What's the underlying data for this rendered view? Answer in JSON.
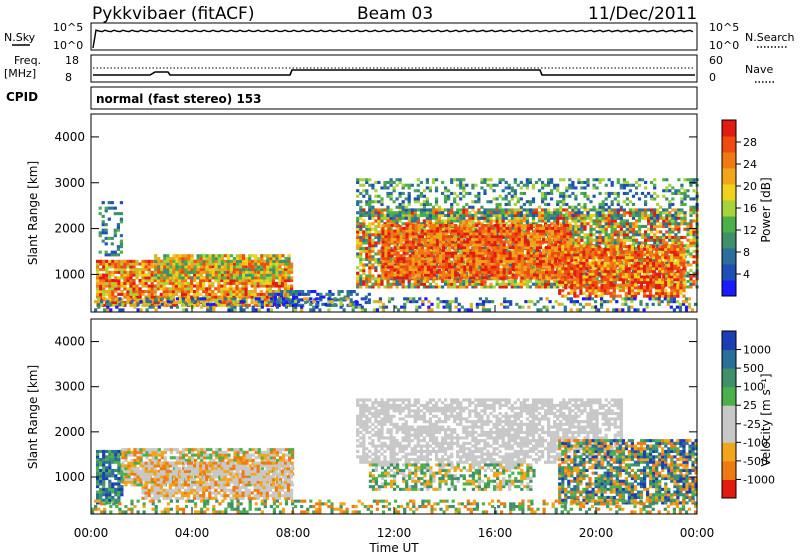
{
  "header": {
    "station": "Pykkvibaer (fitACF)",
    "beam": "Beam 03",
    "date": "11/Dec/2011"
  },
  "panels": {
    "nsky": {
      "label": "N.Sky",
      "ticks": [
        "10^5",
        "10^0"
      ],
      "right_label": "N.Search",
      "right_ticks": [
        "10^5",
        "10^0"
      ]
    },
    "freq": {
      "label_line1": "Freq.",
      "label_line2": "[MHz]",
      "ticks": [
        "18",
        "8"
      ],
      "right_label": "Nave",
      "right_ticks": [
        "60",
        "0"
      ]
    },
    "cpid": {
      "label": "CPID",
      "value": "normal (fast stereo) 153"
    }
  },
  "colors": {
    "power_scale": [
      "#1a1aff",
      "#1f4fb4",
      "#2a6e9b",
      "#3f8f6b",
      "#4cb04a",
      "#a6d33a",
      "#f0d21c",
      "#f0a51a",
      "#f07a12",
      "#ee4a12",
      "#e21a10"
    ],
    "velocity_scale": [
      "#1a3fb4",
      "#2a6e9b",
      "#3f8f6b",
      "#4cb04a",
      "#c8c8c8",
      "#c8c8c8",
      "#f0a51a",
      "#f07a12",
      "#e21a10"
    ],
    "ground_scatter": "#c8c8c8"
  },
  "chart_data": [
    {
      "type": "heatmap",
      "name": "power-panel",
      "ylabel": "Slant Range [km]",
      "ylim": [
        180,
        4500
      ],
      "yticks": [
        "1000",
        "2000",
        "3000",
        "4000"
      ],
      "colorbar_label": "Power [dB]",
      "colorbar_ticks": [
        "4",
        "8",
        "12",
        "16",
        "20",
        "24",
        "28"
      ],
      "colorbar_range": [
        0,
        30
      ]
    },
    {
      "type": "heatmap",
      "name": "velocity-panel",
      "ylabel": "Slant Range [km]",
      "ylim": [
        180,
        4500
      ],
      "yticks": [
        "1000",
        "2000",
        "3000",
        "4000"
      ],
      "colorbar_label": "Velocity [m s⁻¹]",
      "colorbar_ticks": [
        "1000",
        "500",
        "100",
        "25",
        "-25",
        "-100",
        "-500",
        "-1000"
      ]
    }
  ],
  "xaxis": {
    "label": "Time UT",
    "ticks": [
      "00:00",
      "04:00",
      "08:00",
      "12:00",
      "16:00",
      "20:00",
      "00:00"
    ]
  }
}
